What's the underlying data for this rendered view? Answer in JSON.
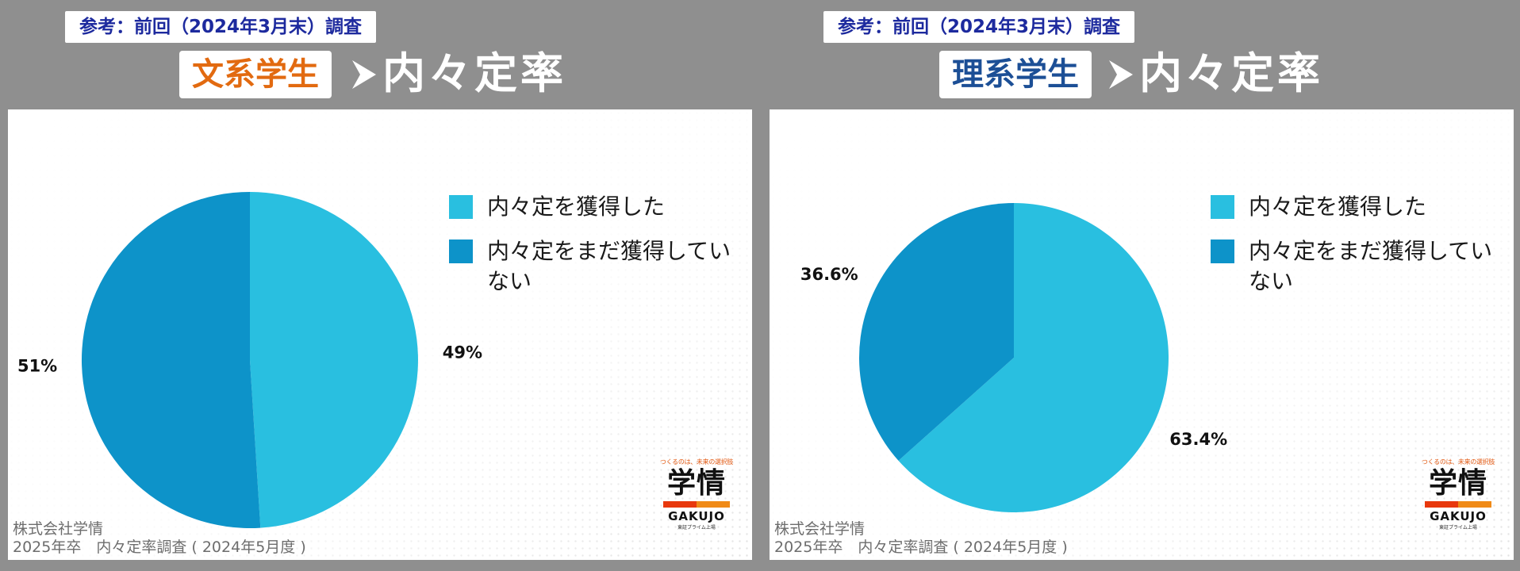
{
  "panels": [
    {
      "reference_label": "参考：前回（2024年3月末）調査",
      "group_label": "文系学生",
      "group_color": "#e26a10",
      "title": "内々定率",
      "legend": [
        "内々定を獲得した",
        "内々定をまだ獲得していない"
      ],
      "source_lines": [
        "株式会社学情",
        "2025年卒　内々定率調査 ( 2024年5月度 )"
      ],
      "logo": {
        "tagline": "つくるのは、未来の選択肢",
        "mark": "学情",
        "word": "GAKUJO",
        "sub": "東証プライム上場"
      }
    },
    {
      "reference_label": "参考：前回（2024年3月末）調査",
      "group_label": "理系学生",
      "group_color": "#1c4f96",
      "title": "内々定率",
      "legend": [
        "内々定を獲得した",
        "内々定をまだ獲得していない"
      ],
      "source_lines": [
        "株式会社学情",
        "2025年卒　内々定率調査 ( 2024年5月度 )"
      ],
      "logo": {
        "tagline": "つくるのは、未来の選択肢",
        "mark": "学情",
        "word": "GAKUJO",
        "sub": "東証プライム上場"
      }
    }
  ],
  "colors": {
    "acquired": "#29bfe0",
    "not_acquired": "#0d93c9"
  },
  "chart_data": [
    {
      "type": "pie",
      "title": "",
      "categories": [
        "内々定を獲得した",
        "内々定をまだ獲得していない"
      ],
      "values": [
        49,
        51
      ],
      "labels": [
        "49%",
        "51%"
      ],
      "colors": [
        "#29bfe0",
        "#0d93c9"
      ],
      "legend_position": "right"
    },
    {
      "type": "pie",
      "title": "",
      "categories": [
        "内々定を獲得した",
        "内々定をまだ獲得していない"
      ],
      "values": [
        63.4,
        36.6
      ],
      "labels": [
        "63.4%",
        "36.6%"
      ],
      "colors": [
        "#29bfe0",
        "#0d93c9"
      ],
      "legend_position": "right"
    }
  ]
}
